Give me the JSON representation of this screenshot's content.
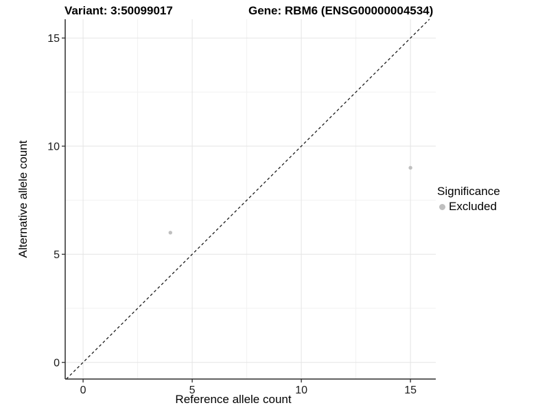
{
  "chart_data": {
    "type": "scatter",
    "title_left": "Variant: 3:50099017",
    "title_right": "Gene: RBM6 (ENSG00000004534)",
    "xlabel": "Reference allele count",
    "ylabel": "Alternative allele count",
    "xlim": [
      -0.82,
      16.16
    ],
    "ylim": [
      -0.77,
      15.87
    ],
    "x_ticks": [
      0,
      5,
      10,
      15
    ],
    "y_ticks": [
      0,
      5,
      10,
      15
    ],
    "x_minor_ticks": [
      2.5,
      7.5,
      12.5
    ],
    "y_minor_ticks": [
      2.5,
      7.5,
      12.5
    ],
    "grid": true,
    "grid_major_color": "#e4e4e4",
    "grid_minor_color": "#f1f1f1",
    "axis_line_color": "#2b2b2b",
    "reference_line": {
      "type": "identity",
      "slope": 1,
      "intercept": 0,
      "style": "dashed",
      "color": "#1a1a1a"
    },
    "legend_title": "Significance",
    "legend_position": "right",
    "series": [
      {
        "name": "Excluded",
        "color": "#bfbfbf",
        "points": [
          {
            "x": 4,
            "y": 6
          },
          {
            "x": 15,
            "y": 9
          }
        ]
      }
    ]
  }
}
